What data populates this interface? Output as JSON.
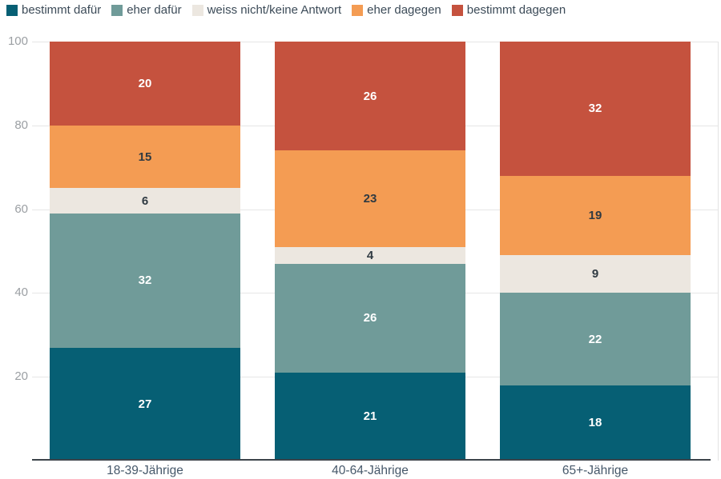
{
  "chart_data": {
    "type": "bar",
    "stacked": true,
    "title": "",
    "xlabel": "",
    "ylabel": "",
    "ylim": [
      0,
      100
    ],
    "yticks": [
      20,
      40,
      60,
      80,
      100
    ],
    "grid": true,
    "legend_position": "top-left",
    "categories": [
      "18-39-Jährige",
      "40-64-Jährige",
      "65+-Jährige"
    ],
    "series": [
      {
        "name": "bestimmt dafür",
        "color": "#065f74",
        "label_color": "#ffffff",
        "values": [
          27,
          21,
          18
        ]
      },
      {
        "name": "eher dafür",
        "color": "#709b99",
        "label_color": "#ffffff",
        "values": [
          32,
          26,
          22
        ]
      },
      {
        "name": "weiss nicht/keine Antwort",
        "color": "#ece7e0",
        "label_color": "#2f3a42",
        "values": [
          6,
          4,
          9
        ]
      },
      {
        "name": "eher dagegen",
        "color": "#f49c53",
        "label_color": "#2f3a42",
        "values": [
          15,
          23,
          19
        ]
      },
      {
        "name": "bestimmt dagegen",
        "color": "#c5523e",
        "label_color": "#ffffff",
        "values": [
          20,
          26,
          32
        ]
      }
    ],
    "colors": {
      "axis_line": "#3c434a",
      "gridline": "#e6e6e6",
      "ytick_text": "#9b9fa3",
      "xtick_text": "#46586a",
      "legend_text": "#3c4b58",
      "background": "#ffffff"
    }
  }
}
